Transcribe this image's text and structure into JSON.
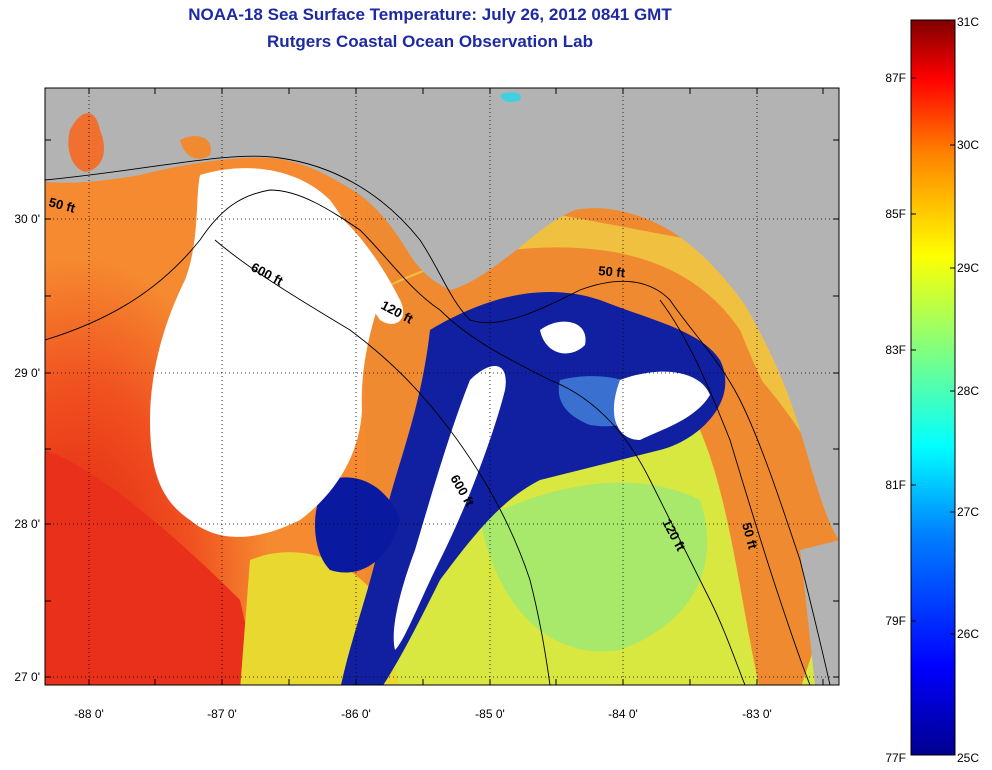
{
  "title_line1": "NOAA-18 Sea Surface Temperature:  July 26, 2012 0841 GMT",
  "title_line2": "Rutgers Coastal Ocean Observation Lab",
  "axes": {
    "x_ticks": [
      "-88 0'",
      "-87 0'",
      "-86 0'",
      "-85 0'",
      "-84 0'",
      "-83 0'"
    ],
    "y_ticks": [
      "30 0'",
      "29 0'",
      "28 0'",
      "27 0'"
    ]
  },
  "contour_labels": [
    {
      "text": "50 ft"
    },
    {
      "text": "600 ft"
    },
    {
      "text": "120 ft"
    },
    {
      "text": "50 ft"
    },
    {
      "text": "600 ft"
    },
    {
      "text": "120 ft"
    },
    {
      "text": "50 ft"
    }
  ],
  "colorbar": {
    "celsius_labels": [
      "31C",
      "30C",
      "29C",
      "28C",
      "27C",
      "26C",
      "25C"
    ],
    "fahrenheit_labels": [
      "87F",
      "85F",
      "83F",
      "81F",
      "79F",
      "77F"
    ]
  },
  "colors": {
    "land": "#b3b3b3",
    "cloud": "#ffffff",
    "title": "#1d2aa3"
  }
}
